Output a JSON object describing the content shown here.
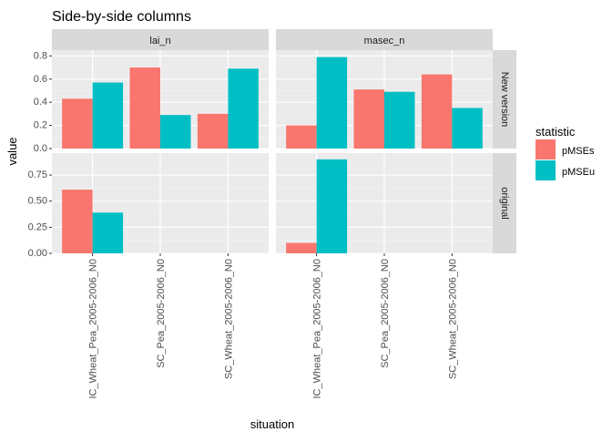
{
  "chart_data": {
    "type": "bar",
    "title": "Side-by-side columns",
    "xlabel": "situation",
    "ylabel": "value",
    "categories": [
      "IC_Wheat_Pea_2005-2006_N0",
      "SC_Pea_2005-2006_N0",
      "SC_Wheat_2005-2006_N0"
    ],
    "facet_columns": [
      "lai_n",
      "masec_n"
    ],
    "facet_rows": [
      "New version",
      "original"
    ],
    "legend": {
      "title": "statistic",
      "position": "right",
      "entries": [
        {
          "name": "pMSEs",
          "color": "#F8766D"
        },
        {
          "name": "pMSEu",
          "color": "#00BFC4"
        }
      ]
    },
    "rows": [
      {
        "ylim": [
          0,
          0.85
        ],
        "yticks": [
          0.0,
          0.2,
          0.4,
          0.6,
          0.8
        ],
        "yticklabels": [
          "0.0",
          "0.2",
          "0.4",
          "0.6",
          "0.8"
        ]
      },
      {
        "ylim": [
          0,
          0.96
        ],
        "yticks": [
          0.0,
          0.25,
          0.5,
          0.75
        ],
        "yticklabels": [
          "0.00",
          "0.25",
          "0.50",
          "0.75"
        ]
      }
    ],
    "panels": [
      {
        "row": 0,
        "col": 0,
        "series": [
          {
            "name": "pMSEs",
            "values": [
              0.43,
              0.7,
              0.3
            ]
          },
          {
            "name": "pMSEu",
            "values": [
              0.57,
              0.29,
              0.69
            ]
          }
        ]
      },
      {
        "row": 0,
        "col": 1,
        "series": [
          {
            "name": "pMSEs",
            "values": [
              0.2,
              0.51,
              0.64
            ]
          },
          {
            "name": "pMSEu",
            "values": [
              0.79,
              0.49,
              0.35
            ]
          }
        ]
      },
      {
        "row": 1,
        "col": 0,
        "series": [
          {
            "name": "pMSEs",
            "values": [
              0.61,
              null,
              null
            ]
          },
          {
            "name": "pMSEu",
            "values": [
              0.39,
              null,
              null
            ]
          }
        ]
      },
      {
        "row": 1,
        "col": 1,
        "series": [
          {
            "name": "pMSEs",
            "values": [
              0.1,
              null,
              null
            ]
          },
          {
            "name": "pMSEu",
            "values": [
              0.9,
              null,
              null
            ]
          }
        ]
      }
    ],
    "grid": true,
    "colors": {
      "panel_bg": "#EBEBEB",
      "strip_bg": "#D9D9D9",
      "grid_major": "#FFFFFF",
      "grid_minor": "#F5F5F5",
      "text": "#1A1A1A",
      "tick_text": "#4D4D4D"
    }
  }
}
